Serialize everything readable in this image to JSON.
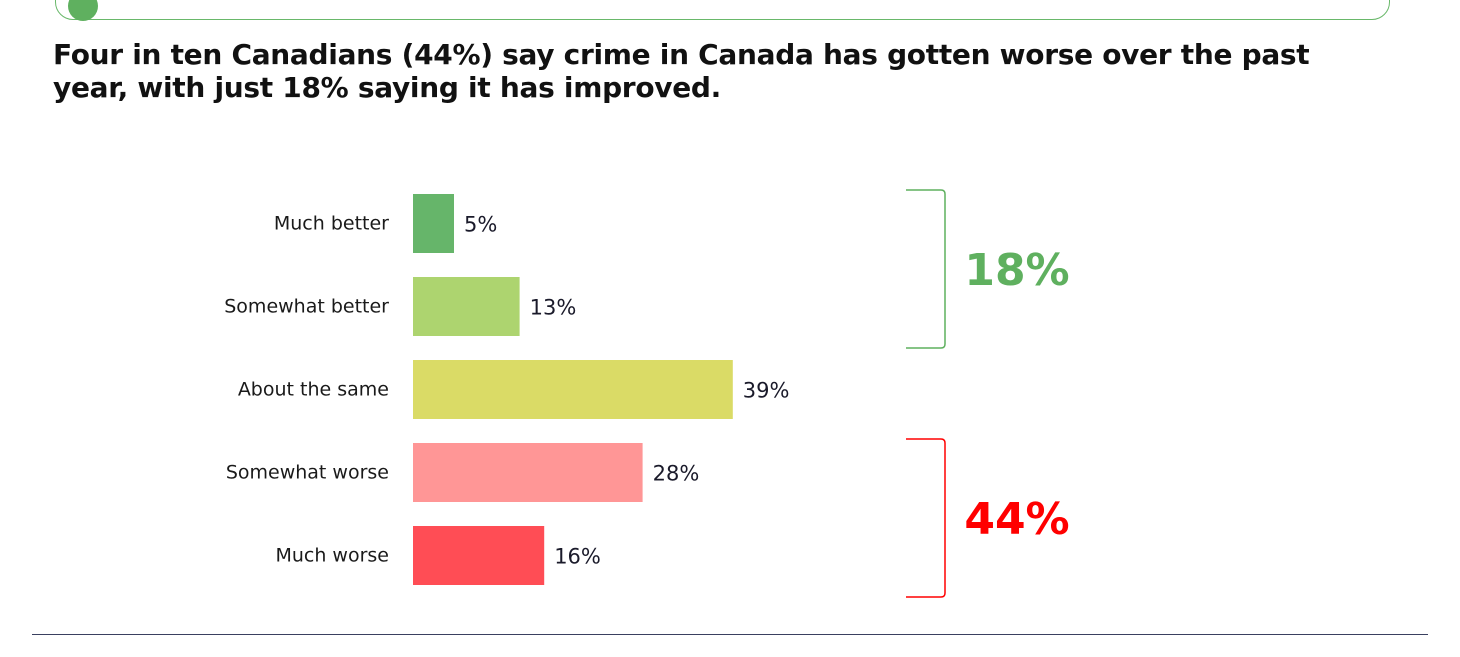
{
  "headline": "Four in ten Canadians (44%) say crime in Canada has gotten worse over the past year, with just 18% saying it has improved.",
  "colors": {
    "banner_border": "#69b86a",
    "better_total": "#5fb05f",
    "worse_total": "#ff0000",
    "better_bracket": "#5fb05f",
    "worse_bracket": "#e84040"
  },
  "chart_data": {
    "type": "bar",
    "orientation": "horizontal",
    "title": "",
    "xlabel": "",
    "ylabel": "",
    "xlim": [
      0,
      50
    ],
    "grid": false,
    "categories": [
      "Much better",
      "Somewhat better",
      "About the same",
      "Somewhat worse",
      "Much worse"
    ],
    "values": [
      5,
      13,
      39,
      28,
      16
    ],
    "value_labels": [
      "5%",
      "13%",
      "39%",
      "28%",
      "16%"
    ],
    "bar_colors": [
      "#66b56a",
      "#add46f",
      "#dadb66",
      "#ff9696",
      "#ff4d55"
    ],
    "groups": [
      {
        "members": [
          0,
          1
        ],
        "total_label": "18%",
        "color": "#5fb05f"
      },
      {
        "members": [
          3,
          4
        ],
        "total_label": "44%",
        "color": "#ff0000"
      }
    ]
  }
}
